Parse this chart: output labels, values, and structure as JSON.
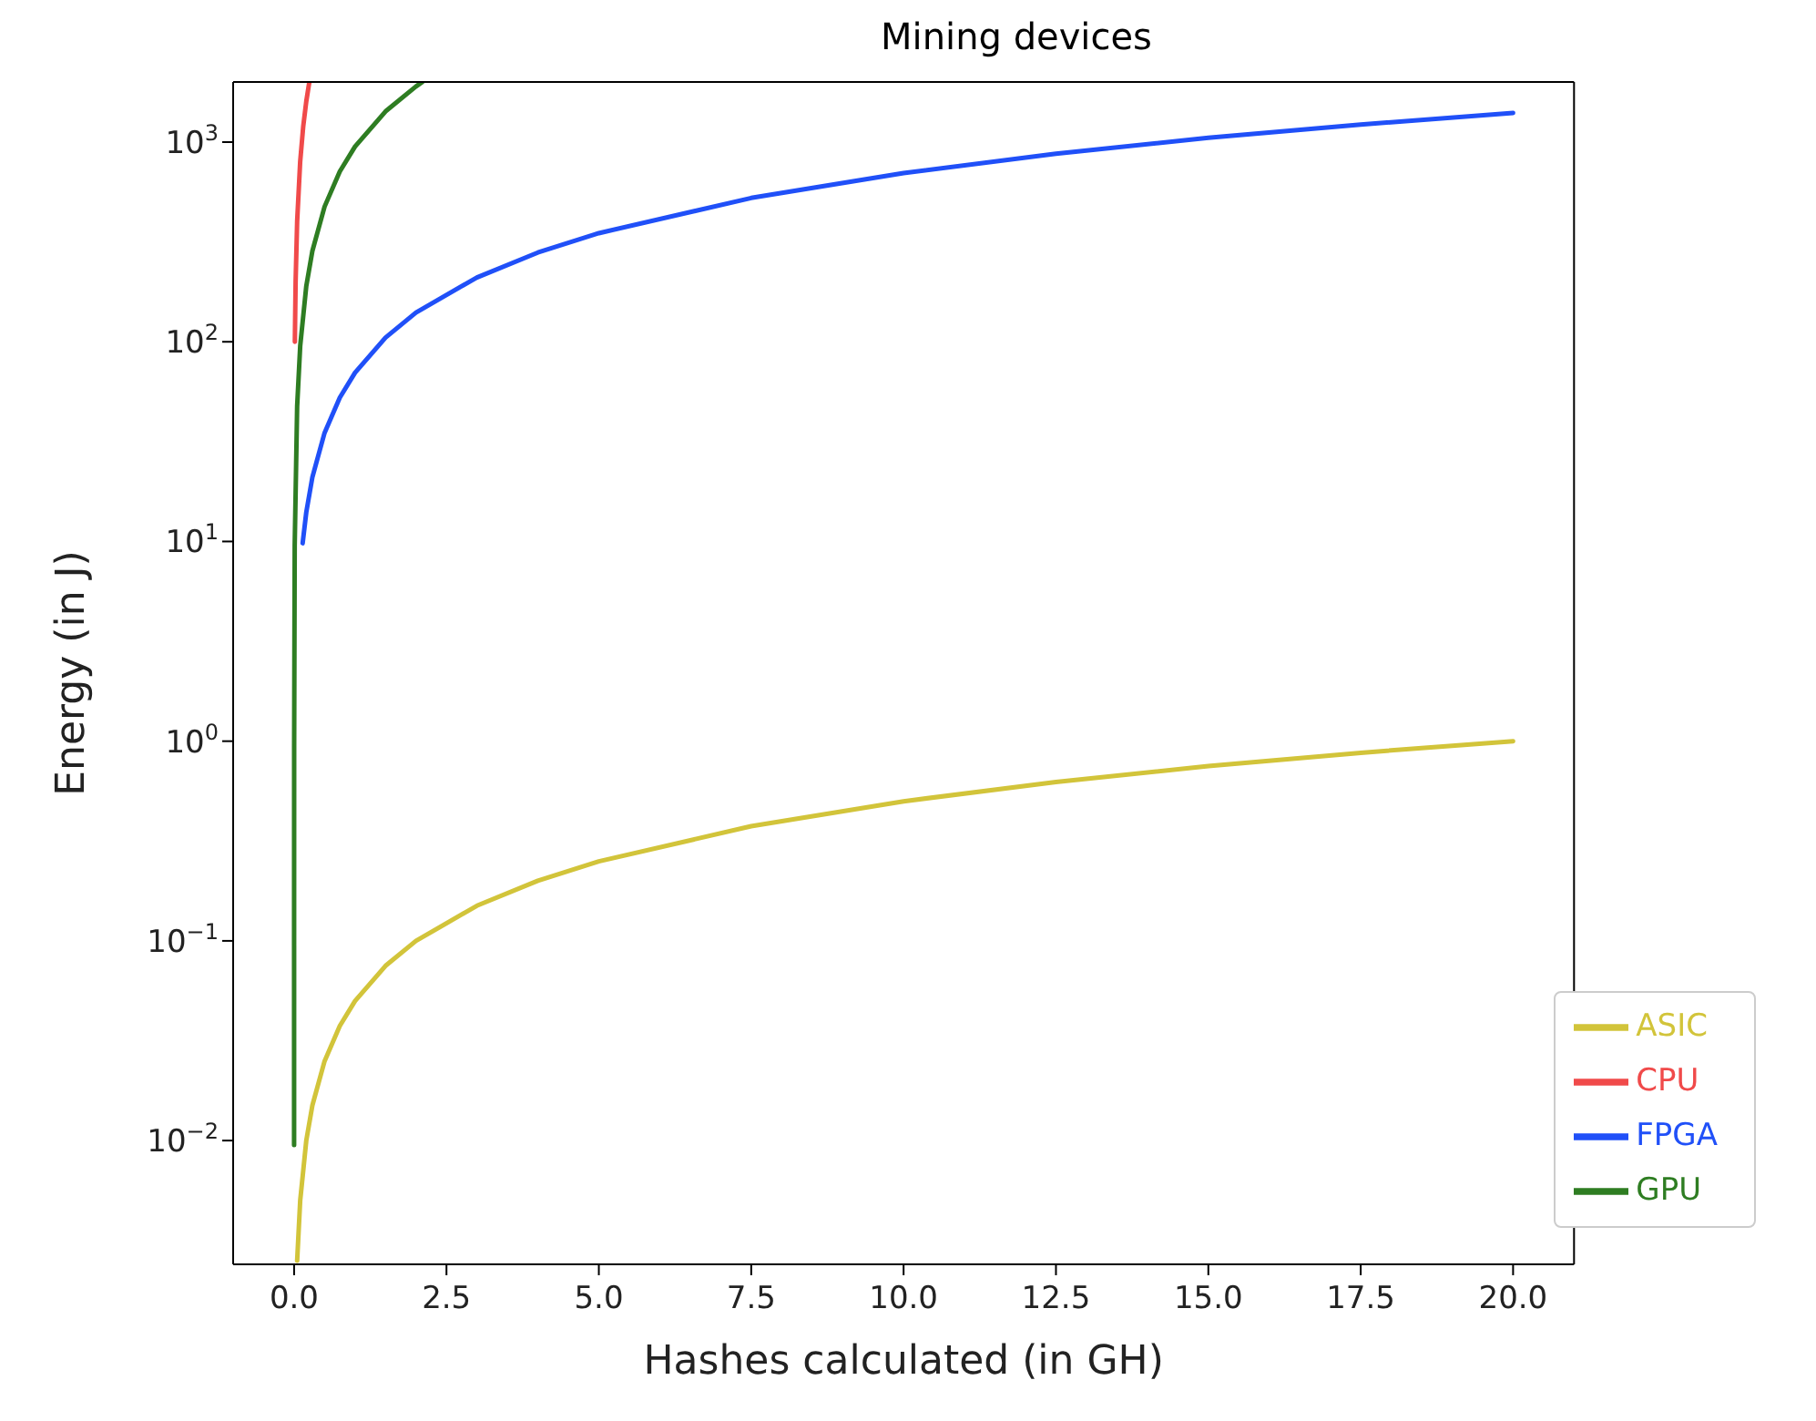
{
  "chart_data": {
    "type": "line",
    "title": "Mining devices",
    "xlabel": "Hashes calculated (in GH)",
    "ylabel": "Energy (in J)",
    "log": "y",
    "grid": false,
    "legend": "bottom right",
    "xlim": [
      -1,
      21
    ],
    "xticks": [
      {
        "value": 0,
        "label": "0.0"
      },
      {
        "value": 2.5,
        "label": "2.5"
      },
      {
        "value": 5,
        "label": "5.0"
      },
      {
        "value": 7.5,
        "label": "7.5"
      },
      {
        "value": 10,
        "label": "10.0"
      },
      {
        "value": 12.5,
        "label": "12.5"
      },
      {
        "value": 15,
        "label": "15.0"
      },
      {
        "value": 17.5,
        "label": "17.5"
      },
      {
        "value": 20,
        "label": "20.0"
      }
    ],
    "ylim": [
      0.0024,
      2000
    ],
    "yticks": [
      {
        "value": 0.01,
        "label": "10$^{−2}$"
      },
      {
        "value": 0.1,
        "label": "10$^{−1}$"
      },
      {
        "value": 1,
        "label": "10$^{0}$"
      },
      {
        "value": 10,
        "label": "10$^{1}$"
      },
      {
        "value": 100,
        "label": "10$^{2}$"
      },
      {
        "value": 1000,
        "label": "10$^{3}$"
      }
    ],
    "series": [
      {
        "name": "CPU",
        "color": "#f04a4a",
        "x": [
          0.0125,
          0.025,
          0.05,
          0.1,
          0.15,
          0.2,
          0.25
        ],
        "values": [
          100,
          200,
          400,
          800,
          1200,
          1600,
          2000
        ]
      },
      {
        "name": "FPGA",
        "color": "#2050f8",
        "x": [
          0.14,
          0.2,
          0.3,
          0.5,
          0.75,
          1,
          1.5,
          2,
          3,
          4,
          5,
          7.5,
          10,
          12.5,
          15,
          17.5,
          20
        ],
        "values": [
          9.8,
          14,
          21,
          35,
          52.5,
          70,
          105,
          140,
          210,
          280,
          350,
          525,
          700,
          875,
          1050,
          1225,
          1400
        ]
      },
      {
        "name": "GPU",
        "color": "#2e7d22",
        "x": [
          1e-05,
          0.0001,
          0.001,
          0.01,
          0.05,
          0.1,
          0.2,
          0.3,
          0.5,
          0.75,
          1,
          1.5,
          2,
          2.1
        ],
        "values": [
          0.0095,
          0.095,
          0.95,
          9.5,
          47.5,
          95,
          190,
          285,
          475,
          712.5,
          950,
          1425,
          1900,
          1995
        ]
      },
      {
        "name": "ASIC",
        "color": "#d2c43a",
        "x": [
          0.05,
          0.1,
          0.2,
          0.3,
          0.5,
          0.75,
          1,
          1.5,
          2,
          3,
          4,
          5,
          7.5,
          10,
          12.5,
          15,
          17.5,
          20
        ],
        "values": [
          0.0025,
          0.005,
          0.01,
          0.015,
          0.025,
          0.0375,
          0.05,
          0.075,
          0.1,
          0.15,
          0.2,
          0.25,
          0.375,
          0.5,
          0.625,
          0.75,
          0.875,
          1
        ]
      }
    ]
  }
}
